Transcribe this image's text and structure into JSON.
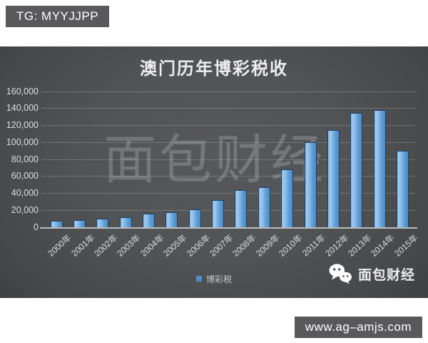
{
  "overlay": {
    "tg_badge": "TG: MYYJJPP",
    "url_badge": "www.ag–amjs.com"
  },
  "chart": {
    "title": "澳门历年博彩税收",
    "watermark": "面包财经",
    "legend_label": "博彩税",
    "wechat_label": "面包财经",
    "icons": {
      "wechat": "wechat-icon",
      "legend_marker": "legend-square-icon"
    },
    "colors": {
      "bar_fill": "#5b9bd5",
      "bar_fill_light": "#8abce7",
      "bar_border": "#1e3f66",
      "chart_bg_center": "#575859",
      "chart_bg_edge": "#38393b",
      "badge_bg": "#59595b",
      "grid": "rgba(255,255,255,0.20)",
      "axis_text": "#dcdee0",
      "title_text": "#ededee"
    }
  },
  "chart_data": {
    "type": "bar",
    "title": "澳门历年博彩税收",
    "categories": [
      "2000年",
      "2001年",
      "2002年",
      "2003年",
      "2004年",
      "2005年",
      "2006年",
      "2007年",
      "2008年",
      "2009年",
      "2010年",
      "2011年",
      "2012年",
      "2013年",
      "2014年",
      "2015年"
    ],
    "series": [
      {
        "name": "博彩税",
        "values": [
          7000,
          8000,
          9500,
          11500,
          15500,
          17500,
          21000,
          32000,
          43500,
          46500,
          68000,
          100000,
          114000,
          134500,
          137500,
          89500
        ]
      }
    ],
    "xlabel": "",
    "ylabel": "",
    "ylim": [
      0,
      160000
    ],
    "yticks": [
      0,
      20000,
      40000,
      60000,
      80000,
      100000,
      120000,
      140000,
      160000
    ],
    "grid": true,
    "legend_position": "bottom"
  }
}
